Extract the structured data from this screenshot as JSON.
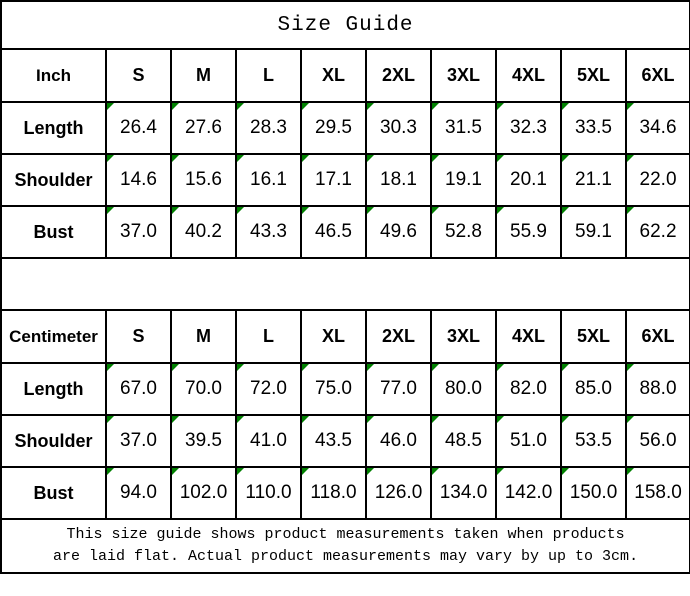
{
  "title": "Size Guide",
  "colors": {
    "border": "#000000",
    "text": "#000000",
    "background": "#ffffff",
    "corner_mark_green": "#008000"
  },
  "tables": [
    {
      "name": "inch",
      "unit_header": "Inch",
      "size_headers": [
        "S",
        "M",
        "L",
        "XL",
        "2XL",
        "3XL",
        "4XL",
        "5XL",
        "6XL"
      ],
      "rows": [
        {
          "label": "Length",
          "values": [
            "26.4",
            "27.6",
            "28.3",
            "29.5",
            "30.3",
            "31.5",
            "32.3",
            "33.5",
            "34.6"
          ]
        },
        {
          "label": "Shoulder",
          "values": [
            "14.6",
            "15.6",
            "16.1",
            "17.1",
            "18.1",
            "19.1",
            "20.1",
            "21.1",
            "22.0"
          ]
        },
        {
          "label": "Bust",
          "values": [
            "37.0",
            "40.2",
            "43.3",
            "46.5",
            "49.6",
            "52.8",
            "55.9",
            "59.1",
            "62.2"
          ]
        }
      ]
    },
    {
      "name": "centimeter",
      "unit_header": "Centimeter",
      "size_headers": [
        "S",
        "M",
        "L",
        "XL",
        "2XL",
        "3XL",
        "4XL",
        "5XL",
        "6XL"
      ],
      "rows": [
        {
          "label": "Length",
          "values": [
            "67.0",
            "70.0",
            "72.0",
            "75.0",
            "77.0",
            "80.0",
            "82.0",
            "85.0",
            "88.0"
          ]
        },
        {
          "label": "Shoulder",
          "values": [
            "37.0",
            "39.5",
            "41.0",
            "43.5",
            "46.0",
            "48.5",
            "51.0",
            "53.5",
            "56.0"
          ]
        },
        {
          "label": "Bust",
          "values": [
            "94.0",
            "102.0",
            "110.0",
            "118.0",
            "126.0",
            "134.0",
            "142.0",
            "150.0",
            "158.0"
          ]
        }
      ]
    }
  ],
  "footer": {
    "line1": "This size guide shows product measurements taken when products",
    "line2": "are laid flat. Actual product measurements may vary by up to 3cm."
  }
}
